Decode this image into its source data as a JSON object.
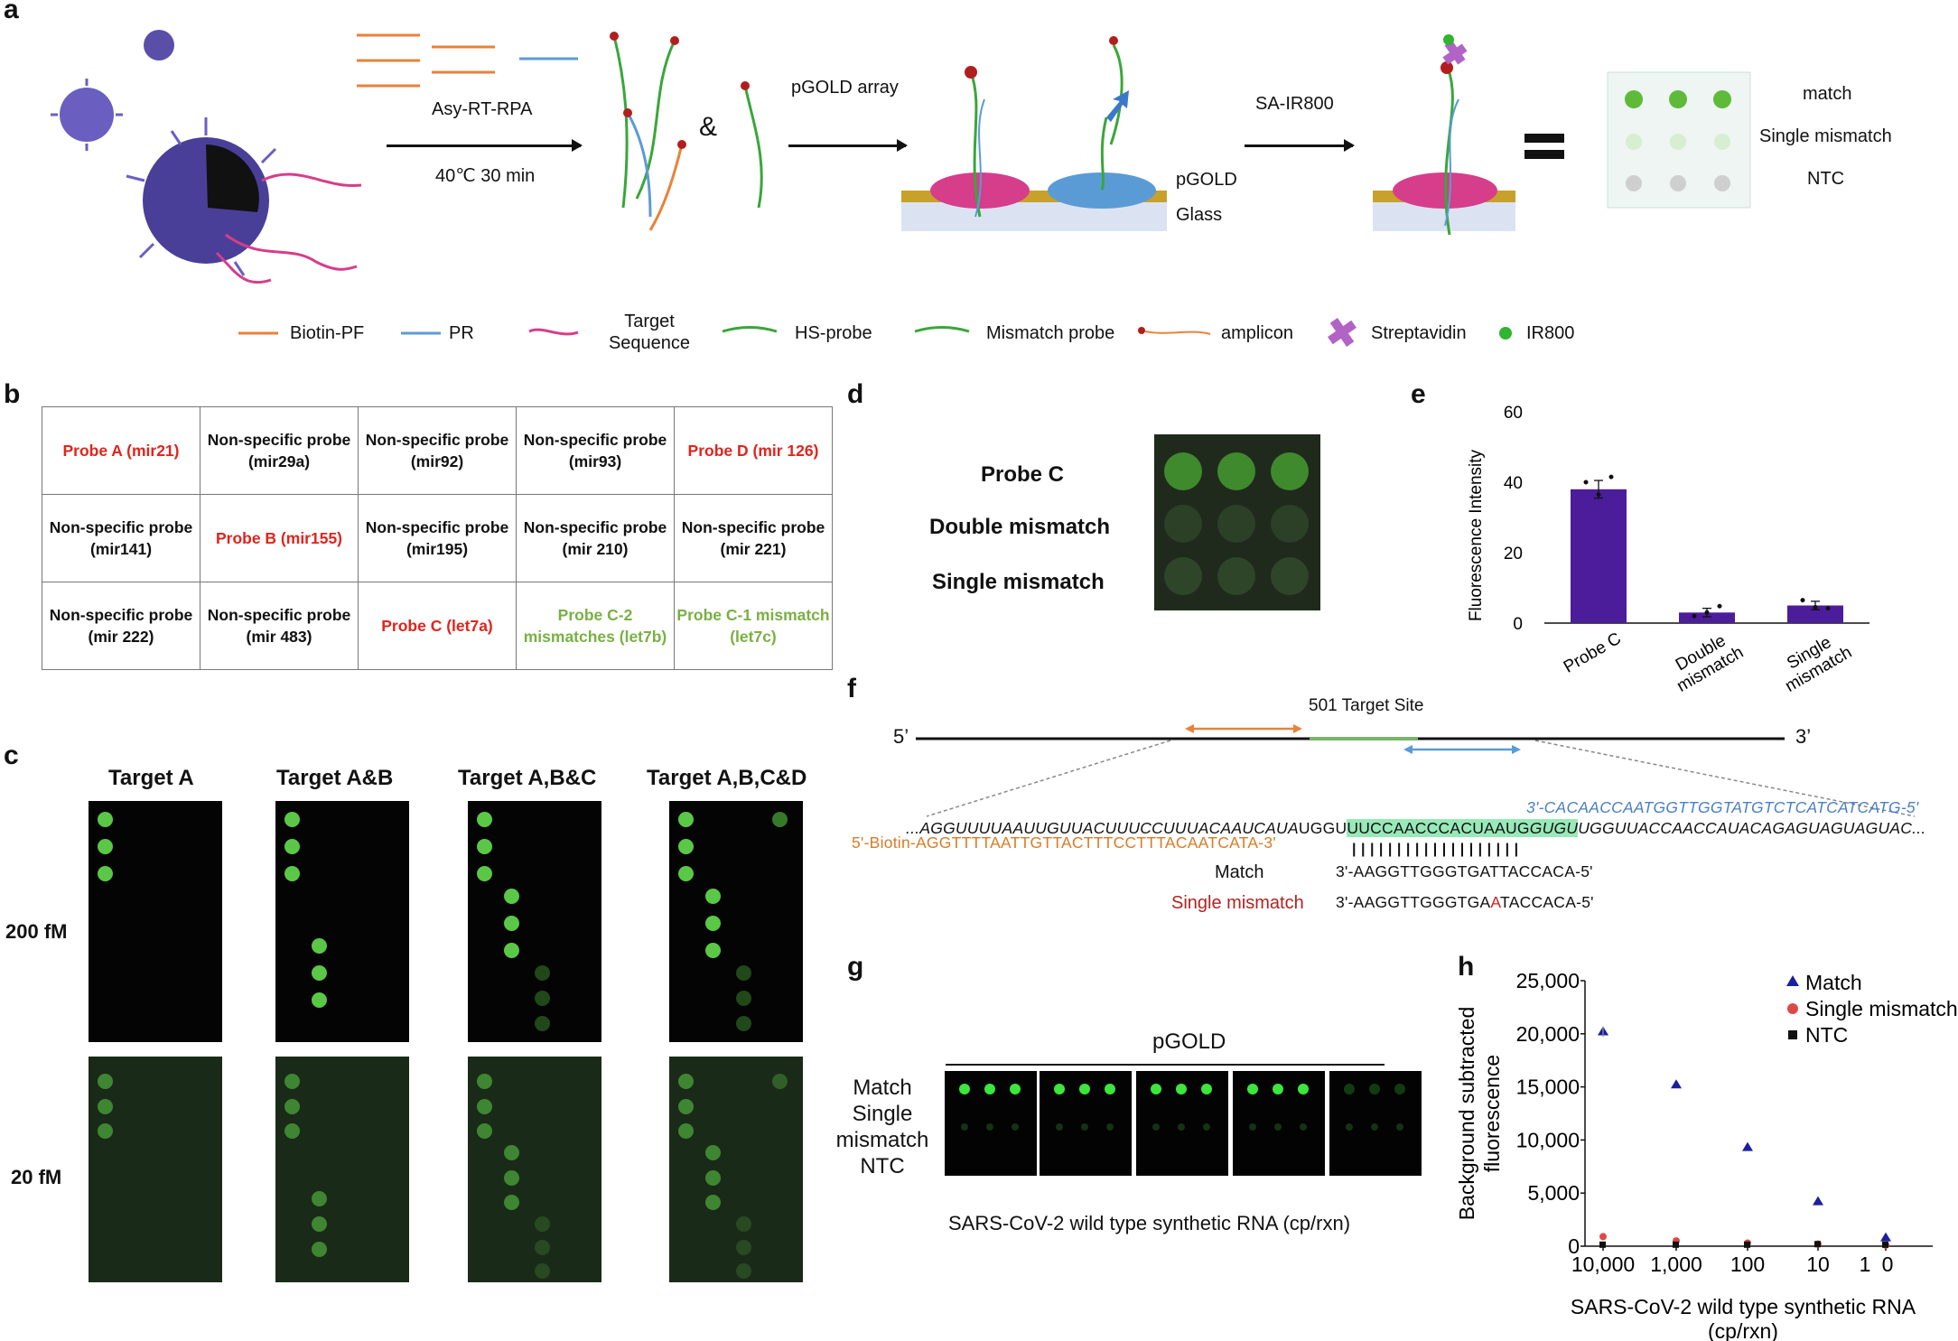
{
  "panels": {
    "a": "a",
    "b": "b",
    "c": "c",
    "d": "d",
    "e": "e",
    "f": "f",
    "g": "g",
    "h": "h"
  },
  "panel_a": {
    "step1_label": "Asy-RT-RPA",
    "step1_condition": "40℃ 30 min",
    "ampersand": "&",
    "step2_label": "pGOLD array",
    "step3_label": "SA-IR800",
    "pgold_label": "pGOLD",
    "glass_label": "Glass",
    "result_rows": [
      "match",
      "Single mismatch",
      "NTC"
    ],
    "legend": [
      {
        "icon": "biotin-pf-icon",
        "label": "Biotin-PF"
      },
      {
        "icon": "pr-icon",
        "label": "PR"
      },
      {
        "icon": "target-sequence-icon",
        "label": "Target Sequence"
      },
      {
        "icon": "hs-probe-icon",
        "label": "HS-probe"
      },
      {
        "icon": "mismatch-probe-icon",
        "label": "Mismatch probe"
      },
      {
        "icon": "amplicon-icon",
        "label": "amplicon"
      },
      {
        "icon": "streptavidin-icon",
        "label": "Streptavidin"
      },
      {
        "icon": "ir800-icon",
        "label": "IR800"
      }
    ],
    "colors": {
      "orange": "#e8823a",
      "blue": "#5b9bd5",
      "green": "#3aa63a",
      "pink": "#d63d8a",
      "gold": "#c8a12a",
      "virus": "#5a4fa8"
    }
  },
  "panel_b": {
    "rows": [
      [
        {
          "l1": "Probe A (mir21)",
          "l2": "",
          "c": "red"
        },
        {
          "l1": "Non-specific probe",
          "l2": "(mir29a)",
          "c": "blk"
        },
        {
          "l1": "Non-specific probe",
          "l2": "(mir92)",
          "c": "blk"
        },
        {
          "l1": "Non-specific probe",
          "l2": "(mir93)",
          "c": "blk"
        },
        {
          "l1": "Probe D (mir 126)",
          "l2": "",
          "c": "red"
        }
      ],
      [
        {
          "l1": "Non-specific probe",
          "l2": "(mir141)",
          "c": "blk"
        },
        {
          "l1": "Probe B (mir155)",
          "l2": "",
          "c": "red"
        },
        {
          "l1": "Non-specific probe",
          "l2": "(mir195)",
          "c": "blk"
        },
        {
          "l1": "Non-specific probe",
          "l2": "(mir 210)",
          "c": "blk"
        },
        {
          "l1": "Non-specific probe",
          "l2": "(mir 221)",
          "c": "blk"
        }
      ],
      [
        {
          "l1": "Non-specific probe",
          "l2": "(mir 222)",
          "c": "blk"
        },
        {
          "l1": "Non-specific probe",
          "l2": "(mir 483)",
          "c": "blk"
        },
        {
          "l1": "Probe C (let7a)",
          "l2": "",
          "c": "red"
        },
        {
          "l1": "Probe C-2",
          "l2": "mismatches (let7b)",
          "c": "grn"
        },
        {
          "l1": "Probe C-1 mismatch",
          "l2": "(let7c)",
          "c": "grn"
        }
      ]
    ]
  },
  "panel_c": {
    "columns": [
      "Target A",
      "Target A&B",
      "Target A,B&C",
      "Target A,B,C&D"
    ],
    "rows": [
      "200 fM",
      "20 fM"
    ]
  },
  "panel_d": {
    "rows": [
      "Probe C",
      "Double mismatch",
      "Single mismatch"
    ]
  },
  "panel_f": {
    "five_prime": "5’",
    "three_prime": "3’",
    "target_site": "501 Target Site",
    "reverse_primer": "3'-CACAACCAATGGTTGGTATGTCTCATCATCATG-5'",
    "template_left": "...AGGUUUUAAUUGUUACUUUCCUUUACAAUCAUA",
    "template_mid1": "UGGU",
    "template_highlight": "UUCCAACCCACUAAUG",
    "template_highlight_it": "GUGU",
    "template_right": "UGGUUACCAACCAUACAGAGUAGUAGUAC...",
    "forward_primer": "5'-Biotin-AGGTTTTAATTGTTACTTTCCTTTACAATCATA-3'",
    "ticks": "|||||||||||||||||||",
    "match_label": "Match",
    "match_seq": "3'-AAGGTTGGGTGATTACCACA-5'",
    "single_label": "Single mismatch",
    "single_seq_a": "3'-AAGGTTGGGTGA",
    "single_seq_b": "A",
    "single_seq_c": "TACCACA-5'"
  },
  "panel_g": {
    "header": "pGOLD",
    "row_labels": [
      "Match",
      "Single",
      "mismatch",
      "NTC"
    ],
    "caption": "SARS-CoV-2 wild type synthetic RNA (cp/rxn)",
    "match_intensity": [
      1.0,
      1.0,
      1.0,
      1.0,
      0.25
    ]
  },
  "chart_data": [
    {
      "type": "bar",
      "panel": "e",
      "categories": [
        "Probe C",
        "Double mismatch",
        "Single mismatch"
      ],
      "tick_labels": [
        [
          "Probe C"
        ],
        [
          "Double",
          "mismatch"
        ],
        [
          "Single",
          "mismatch"
        ]
      ],
      "values": [
        38,
        3,
        5
      ],
      "errors": [
        2.5,
        1.2,
        1.2
      ],
      "points": [
        [
          40,
          36.5,
          41.5
        ],
        [
          2,
          3,
          4.8
        ],
        [
          6.5,
          4.5,
          4.2
        ]
      ],
      "ylabel": "Fluorescence Intensity",
      "ylim": [
        0,
        60
      ],
      "yticks": [
        0,
        20,
        40,
        60
      ],
      "color": "#4b1d9a"
    },
    {
      "type": "scatter",
      "panel": "h",
      "x": [
        10000,
        1000,
        100,
        10,
        1
      ],
      "x_tick_labels": [
        "10,000",
        "1,000",
        "100",
        "10",
        "1",
        "0"
      ],
      "x_scale": "log, reversed",
      "series": [
        {
          "name": "Match",
          "marker": "triangle",
          "color": "#1b1f9e",
          "values": [
            20200,
            15200,
            9300,
            4200,
            800
          ],
          "errors": [
            500,
            0,
            0,
            0,
            0
          ]
        },
        {
          "name": "Single mismatch",
          "marker": "circle",
          "color": "#e04848",
          "values": [
            900,
            500,
            300,
            200,
            100
          ]
        },
        {
          "name": "NTC",
          "marker": "square",
          "color": "#111111",
          "values": [
            100,
            100,
            100,
            150,
            100
          ]
        }
      ],
      "ylabel": "Background subtracted fluorescence",
      "xlabel": "SARS-CoV-2 wild type synthetic RNA (cp/rxn)",
      "ylim": [
        0,
        25000
      ],
      "yticks": [
        0,
        5000,
        10000,
        15000,
        20000,
        25000
      ],
      "ytick_labels": [
        "0",
        "5,000",
        "10,000",
        "15,000",
        "20,000",
        "25,000"
      ],
      "legend_position": "top-right"
    }
  ]
}
